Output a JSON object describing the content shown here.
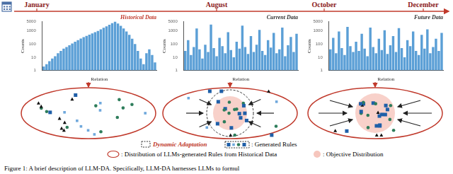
{
  "timeline": {
    "months": [
      "January",
      "August",
      "October",
      "December"
    ]
  },
  "chart_data": [
    {
      "type": "bar",
      "title": "Historical Data",
      "title_color": "#c0392b",
      "x_label": "Relation",
      "y_label": "Counts",
      "categories": [
        null,
        null,
        null,
        null,
        null,
        null,
        null,
        null,
        null,
        null,
        null,
        null,
        null,
        null,
        null,
        null,
        null,
        null,
        null,
        null,
        null,
        null,
        null,
        null,
        null,
        null,
        null,
        null,
        null,
        null,
        null,
        null,
        null,
        null,
        null,
        null,
        null,
        null,
        null,
        null
      ],
      "values": [
        2,
        3,
        5,
        8,
        12,
        20,
        30,
        45,
        60,
        80,
        110,
        150,
        200,
        260,
        330,
        420,
        520,
        650,
        800,
        1000,
        1300,
        1700,
        2200,
        2900,
        3800,
        5000,
        3600,
        2400,
        1500,
        900,
        500,
        250,
        100,
        30,
        8,
        3,
        20,
        40,
        15,
        4
      ],
      "color": "#5b9fd6",
      "ylim": [
        1,
        5000
      ],
      "yticks": [
        1,
        10,
        100,
        1000,
        5000
      ],
      "log": "y",
      "grid": false,
      "tick_labels": "y"
    },
    {
      "type": "bar",
      "title": "Current Data",
      "title_color": "#333333",
      "x_label": "Relation",
      "y_label": "Counts",
      "categories": [
        null,
        null,
        null,
        null,
        null,
        null,
        null,
        null,
        null,
        null,
        null,
        null,
        null,
        null,
        null,
        null,
        null,
        null,
        null,
        null,
        null,
        null,
        null,
        null,
        null,
        null,
        null,
        null,
        null,
        null,
        null,
        null,
        null,
        null,
        null,
        null,
        null,
        null,
        null,
        null
      ],
      "values": [
        30,
        200,
        15,
        60,
        1500,
        40,
        8,
        90,
        25,
        3000,
        50,
        12,
        300,
        70,
        20,
        800,
        35,
        10,
        150,
        45,
        2500,
        60,
        18,
        400,
        25,
        90,
        1200,
        30,
        15,
        200,
        55,
        700,
        20,
        40,
        1800,
        12,
        80,
        350,
        25,
        600
      ],
      "color": "#5b9fd6",
      "ylim": [
        1,
        5000
      ],
      "yticks": [
        1,
        10,
        100,
        1000,
        5000
      ],
      "log": "y",
      "grid": false,
      "tick_labels": "y"
    },
    {
      "type": "bar",
      "title": "Future Data",
      "title_color": "#333333",
      "x_label": "Relation",
      "y_label": "Counts",
      "categories": [
        null,
        null,
        null,
        null,
        null,
        null,
        null,
        null,
        null,
        null,
        null,
        null,
        null,
        null,
        null,
        null,
        null,
        null,
        null,
        null,
        null,
        null,
        null,
        null,
        null,
        null,
        null,
        null,
        null,
        null,
        null,
        null,
        null,
        null,
        null,
        null,
        null,
        null,
        null,
        null
      ],
      "values": [
        40,
        300,
        20,
        900,
        50,
        15,
        2000,
        70,
        25,
        150,
        30,
        600,
        45,
        12,
        1800,
        60,
        20,
        250,
        35,
        1100,
        18,
        80,
        400,
        25,
        1600,
        50,
        10,
        200,
        70,
        900,
        30,
        15,
        500,
        45,
        1300,
        20,
        60,
        250,
        30,
        700
      ],
      "color": "#5b9fd6",
      "ylim": [
        1,
        5000
      ],
      "yticks": [
        1,
        10,
        100,
        1000,
        5000
      ],
      "log": "y",
      "grid": false,
      "tick_labels": "y"
    }
  ],
  "diagram": {
    "dynamic_adaptation": "Dynamic Adaptation",
    "generated_rules": ": Generated Rules",
    "historical_distribution": ": Distribution of LLMs-generated Rules from Historical Data",
    "objective_distribution": ": Objective Distribution"
  },
  "caption": "Figure 1: A brief description of LLM-DA. Specifically, LLM-DA harnesses LLMs to formul"
}
